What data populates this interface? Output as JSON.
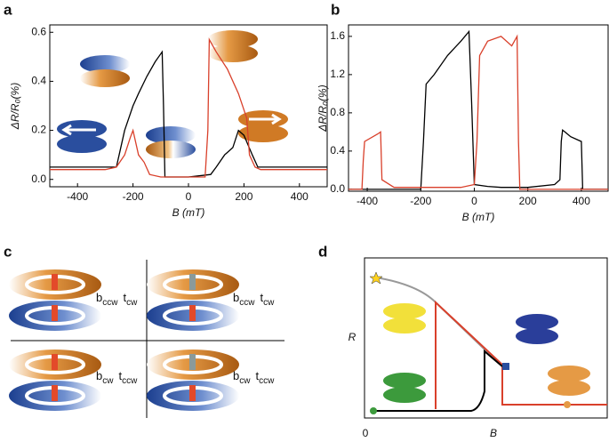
{
  "panels": [
    "a",
    "b",
    "c",
    "d"
  ],
  "chart_data": [
    {
      "type": "line",
      "x_label": "B (mT)",
      "y_label": "ΔR/R₀(%)",
      "xlim": [
        -500,
        500
      ],
      "xticks": [
        -400,
        -200,
        0,
        200,
        400
      ],
      "ylim": [
        -0.03,
        0.63
      ],
      "yticks": [
        {
          "value": 0,
          "label": "0.0"
        },
        0.2,
        0.4,
        0.6
      ],
      "series": [
        {
          "color": "#000000",
          "x": [
            -500,
            -260,
            -250,
            -230,
            -200,
            -180,
            -150,
            -120,
            -95,
            -90,
            -85,
            0,
            80,
            100,
            130,
            160,
            180,
            200,
            230,
            250,
            300,
            500
          ],
          "values": [
            0.05,
            0.05,
            0.1,
            0.2,
            0.3,
            0.35,
            0.42,
            0.48,
            0.52,
            0.3,
            0.01,
            0.01,
            0.02,
            0.05,
            0.1,
            0.13,
            0.2,
            0.18,
            0.1,
            0.05,
            0.05,
            0.05
          ]
        },
        {
          "color": "#d9402b",
          "x": [
            -500,
            -300,
            -260,
            -230,
            -210,
            -200,
            -180,
            -160,
            -140,
            -100,
            0,
            60,
            70,
            75,
            100,
            140,
            180,
            210,
            220,
            240,
            260,
            500
          ],
          "values": [
            0.04,
            0.04,
            0.05,
            0.1,
            0.17,
            0.2,
            0.1,
            0.07,
            0.02,
            0.01,
            0.01,
            0.01,
            0.2,
            0.57,
            0.52,
            0.45,
            0.35,
            0.25,
            0.1,
            0.05,
            0.04,
            0.04
          ]
        }
      ]
    },
    {
      "type": "line",
      "x_label": "B (mT)",
      "y_label": "ΔR/R₀(%)",
      "xlim": [
        -470,
        500
      ],
      "xticks": [
        -400,
        -200,
        0,
        200,
        400
      ],
      "ylim": [
        -0.02,
        1.72
      ],
      "yticks": [
        {
          "value": 0,
          "label": "0.0"
        },
        0.4,
        0.8,
        1.2,
        1.6
      ],
      "series": [
        {
          "color": "#000000",
          "x": [
            -470,
            -200,
            -190,
            -180,
            -150,
            -100,
            -50,
            -20,
            -10,
            0,
            50,
            100,
            200,
            300,
            320,
            325,
            330,
            360,
            400,
            403,
            405,
            500
          ],
          "values": [
            0,
            0,
            0.5,
            1.1,
            1.2,
            1.4,
            1.55,
            1.65,
            0.9,
            0.05,
            0.03,
            0.02,
            0.02,
            0.05,
            0.1,
            0.5,
            0.62,
            0.55,
            0.5,
            0.2,
            0,
            0
          ]
        },
        {
          "color": "#d9402b",
          "x": [
            -470,
            -420,
            -415,
            -410,
            -360,
            -350,
            -345,
            -300,
            -150,
            -50,
            0,
            10,
            20,
            50,
            100,
            140,
            160,
            165,
            170,
            500
          ],
          "values": [
            0,
            0,
            0.3,
            0.5,
            0.58,
            0.6,
            0.1,
            0.02,
            0.02,
            0.02,
            0.05,
            0.5,
            1.4,
            1.55,
            1.6,
            1.5,
            1.6,
            0.5,
            0,
            0
          ]
        }
      ]
    }
  ],
  "panel_c": {
    "labels": [
      [
        "b",
        "ccw",
        "t",
        "cw"
      ],
      [
        "b",
        "ccw",
        "t",
        "cw"
      ],
      [
        "b",
        "cw",
        "t",
        "ccw"
      ],
      [
        "b",
        "cw",
        "t",
        "ccw"
      ]
    ]
  },
  "panel_d": {
    "y_label": "R",
    "x_label": "B",
    "origin": "0"
  }
}
